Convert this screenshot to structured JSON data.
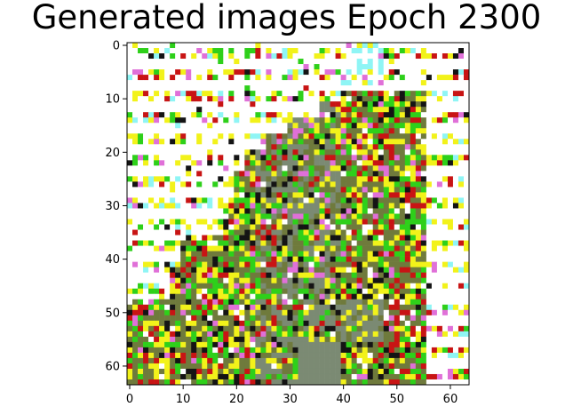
{
  "figure": {
    "title": "Generated images Epoch 2300"
  },
  "axes": {
    "x_ticks": [
      "0",
      "10",
      "20",
      "30",
      "40",
      "50",
      "60"
    ],
    "y_ticks": [
      "0",
      "10",
      "20",
      "30",
      "40",
      "50",
      "60"
    ],
    "x_range": [
      -0.5,
      63.5
    ],
    "y_range": [
      63.5,
      -0.5
    ],
    "image_size": [
      64,
      64
    ]
  },
  "image_description_colors": {
    "white": "#ffffff",
    "yellow": "#f2f21a",
    "green": "#2ed01a",
    "red": "#c81414",
    "black": "#141414",
    "olive": "#6f7a3c",
    "magenta": "#e070d8",
    "cyan": "#8ff5f5",
    "gray_green": "#7b8a73"
  }
}
